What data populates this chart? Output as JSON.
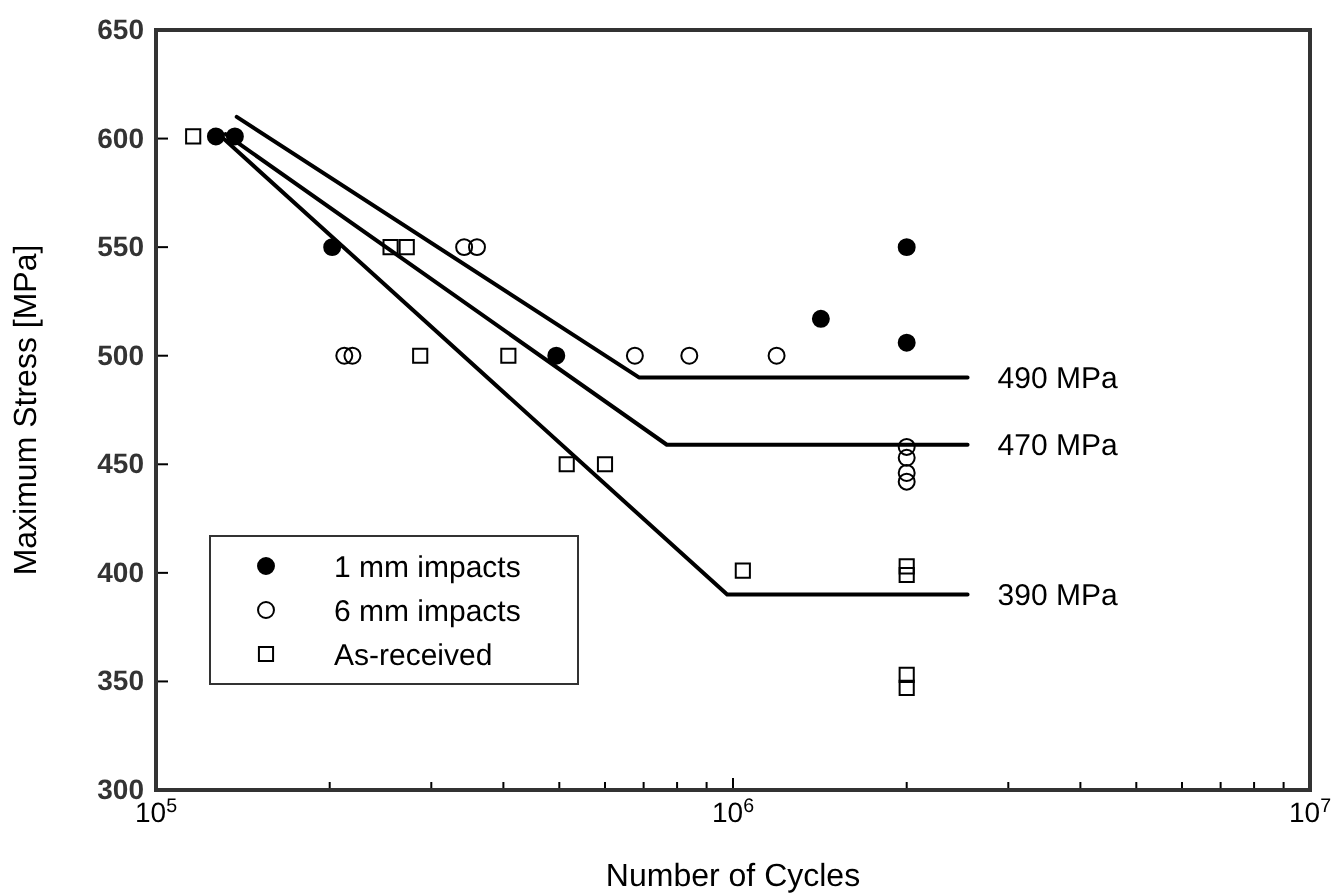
{
  "chart_data": {
    "type": "scatter",
    "xlabel": "Number of Cycles",
    "ylabel": "Maximum Stress [MPa]",
    "log": "x",
    "grid": false,
    "legend": "bottom left",
    "xlim": [
      100000,
      10000000
    ],
    "ylim": [
      300,
      650
    ],
    "xticks": [
      {
        "value": 100000,
        "label": "10$^{5}$"
      },
      {
        "value": 200000,
        "label": null
      },
      {
        "value": 300000,
        "label": null
      },
      {
        "value": 400000,
        "label": null
      },
      {
        "value": 500000,
        "label": null
      },
      {
        "value": 600000,
        "label": null
      },
      {
        "value": 700000,
        "label": null
      },
      {
        "value": 800000,
        "label": null
      },
      {
        "value": 900000,
        "label": null
      },
      {
        "value": 1000000,
        "label": "10$^{6}$"
      },
      {
        "value": 2000000,
        "label": null
      },
      {
        "value": 3000000,
        "label": null
      },
      {
        "value": 4000000,
        "label": null
      },
      {
        "value": 5000000,
        "label": null
      },
      {
        "value": 6000000,
        "label": null
      },
      {
        "value": 7000000,
        "label": null
      },
      {
        "value": 8000000,
        "label": null
      },
      {
        "value": 9000000,
        "label": null
      },
      {
        "value": 10000000,
        "label": "10$^{7}$"
      }
    ],
    "yticks": [
      300,
      350,
      400,
      450,
      500,
      550,
      600,
      650
    ],
    "series": [
      {
        "name": "1 mm impacts",
        "marker": "circle",
        "color": "#000000",
        "x": [
          127000,
          137000,
          202000,
          494000,
          1420000,
          2000000,
          2000000
        ],
        "values": [
          601,
          601,
          550,
          500,
          517,
          550,
          506
        ]
      },
      {
        "name": "6 mm impacts",
        "marker": "circle",
        "color": "#000000",
        "x": [
          212000,
          219000,
          342000,
          360000,
          676000,
          840000,
          1190000,
          2000000,
          2000000,
          2000000,
          2000000
        ],
        "values": [
          500,
          500,
          550,
          550,
          500,
          500,
          500,
          458,
          453,
          446,
          442
        ]
      },
      {
        "name": "As-received",
        "marker": "square",
        "color": "#000000",
        "x": [
          116000,
          255000,
          272000,
          287000,
          408000,
          515000,
          600000,
          1040000,
          2000000,
          2000000,
          2000000,
          2000000
        ],
        "values": [
          601,
          550,
          550,
          500,
          500,
          450,
          450,
          401,
          403,
          399,
          353,
          347
        ]
      },
      {
        "type": "line",
        "marker": "none",
        "color": "#000000",
        "x": [
          138000,
          687000,
          2550000
        ],
        "values": [
          610,
          490,
          490
        ]
      },
      {
        "type": "line",
        "marker": "none",
        "color": "#000000",
        "x": [
          132000,
          768000,
          2550000
        ],
        "values": [
          602,
          459,
          459
        ]
      },
      {
        "type": "line",
        "marker": "none",
        "color": "#000000",
        "x": [
          126000,
          977000,
          2550000
        ],
        "values": [
          604,
          390,
          390
        ]
      }
    ],
    "annotations": [
      "490 MPa",
      "470 MPa",
      "390 MPa"
    ]
  }
}
